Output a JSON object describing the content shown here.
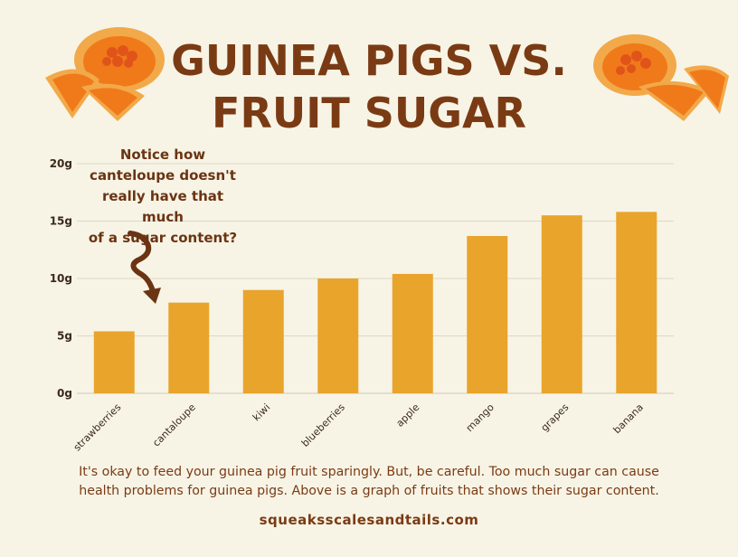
{
  "title": {
    "line1": "GUINEA PIGS VS.",
    "line2": "FRUIT SUGAR"
  },
  "callout": {
    "lines": [
      "Notice how",
      "canteloupe doesn't",
      "really have that much",
      "of a sugar content?"
    ]
  },
  "caption": {
    "line1": "It's okay to feed your guinea pig fruit sparingly.  But, be careful.  Too much sugar can cause",
    "line2": "health problems for guinea pigs.  Above is a graph of fruits that shows their sugar content."
  },
  "website": "squeaksscalesandtails.com",
  "colors": {
    "bar": "#e9a42c",
    "title": "#7a3b14",
    "background": "#f7f4e6",
    "melon_rind": "#f2a94a",
    "melon_flesh": "#f07a1a"
  },
  "chart_data": {
    "type": "bar",
    "categories": [
      "strawberries",
      "cantaloupe",
      "kiwi",
      "blueberries",
      "apple",
      "mango",
      "grapes",
      "banana"
    ],
    "values": [
      5.4,
      7.9,
      9.0,
      10.0,
      10.4,
      13.7,
      15.5,
      15.8
    ],
    "ylim": [
      0,
      20
    ],
    "yticks": [
      0,
      5,
      10,
      15,
      20
    ],
    "ytick_labels": [
      "0g",
      "5g",
      "10g",
      "15g",
      "20g"
    ],
    "grid": true,
    "xlabel": "",
    "ylabel": ""
  }
}
